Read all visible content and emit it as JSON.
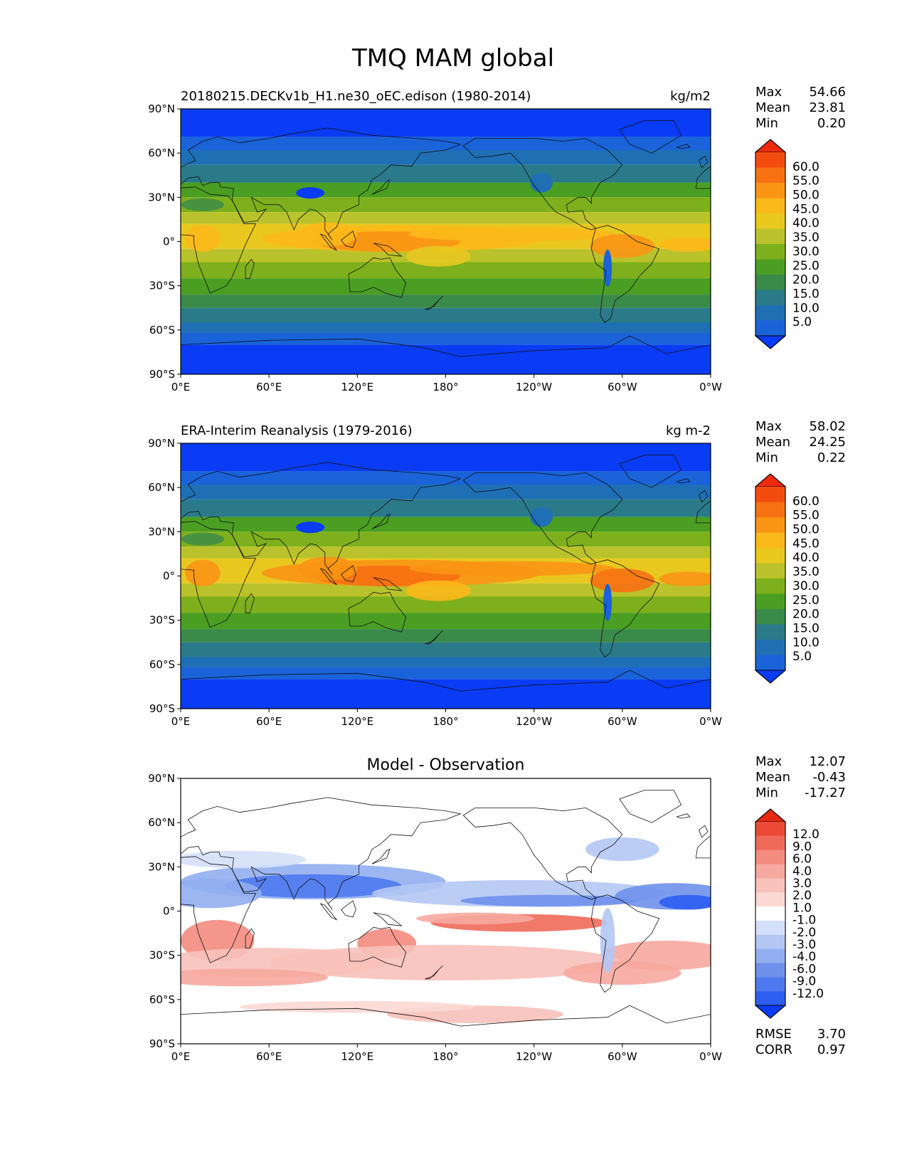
{
  "figure": {
    "title": "TMQ MAM global"
  },
  "axes": {
    "lat_ticks": [
      "90°N",
      "60°N",
      "30°N",
      "0°",
      "30°S",
      "60°S",
      "90°S"
    ],
    "lon_ticks": [
      "0°E",
      "60°E",
      "120°E",
      "180°",
      "120°W",
      "60°W",
      "0°W"
    ]
  },
  "colors": {
    "field": [
      "#0a3cf5",
      "#1a63d9",
      "#1f6fb5",
      "#2a7a8a",
      "#3a8a4a",
      "#4a9e22",
      "#7db01c",
      "#b9c22a",
      "#e8c81f",
      "#fbb81a",
      "#fa9514",
      "#f77012",
      "#f24d0f",
      "#ee2a0c"
    ],
    "diff": [
      "#0a3cf5",
      "#2f5ef2",
      "#4f79ee",
      "#6f91ec",
      "#91aef0",
      "#b4c7f4",
      "#d4e0f9",
      "#ffffff",
      "#fbd8d4",
      "#f8c1ba",
      "#f6a99f",
      "#f38b7e",
      "#f06a5a",
      "#ec4a37",
      "#e82912"
    ]
  },
  "chart_data": [
    {
      "type": "heatmap",
      "panel": "model",
      "title_left": "20180215.DECKv1b_H1.ne30_oEC.edison (1980-2014)",
      "title_right": "kg/m2",
      "stats": [
        {
          "label": "Max",
          "value": "54.66"
        },
        {
          "label": "Mean",
          "value": "23.81"
        },
        {
          "label": "Min",
          "value": "0.20"
        }
      ],
      "colorbar_levels": [
        "60.0",
        "55.0",
        "50.0",
        "45.0",
        "40.0",
        "35.0",
        "30.0",
        "25.0",
        "20.0",
        "15.0",
        "10.0",
        "5.0"
      ],
      "lon_range": [
        0,
        360
      ],
      "lat_range": [
        -90,
        90
      ]
    },
    {
      "type": "heatmap",
      "panel": "observation",
      "title_left": "ERA-Interim Reanalysis (1979-2016)",
      "title_right": "kg m-2",
      "stats": [
        {
          "label": "Max",
          "value": "58.02"
        },
        {
          "label": "Mean",
          "value": "24.25"
        },
        {
          "label": "Min",
          "value": "0.22"
        }
      ],
      "colorbar_levels": [
        "60.0",
        "55.0",
        "50.0",
        "45.0",
        "40.0",
        "35.0",
        "30.0",
        "25.0",
        "20.0",
        "15.0",
        "10.0",
        "5.0"
      ],
      "lon_range": [
        0,
        360
      ],
      "lat_range": [
        -90,
        90
      ]
    },
    {
      "type": "heatmap",
      "panel": "difference",
      "title_center": "Model - Observation",
      "stats": [
        {
          "label": "Max",
          "value": "12.07"
        },
        {
          "label": "Mean",
          "value": "-0.43"
        },
        {
          "label": "Min",
          "value": "-17.27"
        }
      ],
      "colorbar_levels": [
        "12.0",
        "9.0",
        "6.0",
        "4.0",
        "3.0",
        "2.0",
        "1.0",
        "-1.0",
        "-2.0",
        "-3.0",
        "-4.0",
        "-6.0",
        "-9.0",
        "-12.0"
      ],
      "metrics": [
        {
          "label": "RMSE",
          "value": "3.70"
        },
        {
          "label": "CORR",
          "value": "0.97"
        }
      ],
      "lon_range": [
        0,
        360
      ],
      "lat_range": [
        -90,
        90
      ]
    }
  ]
}
